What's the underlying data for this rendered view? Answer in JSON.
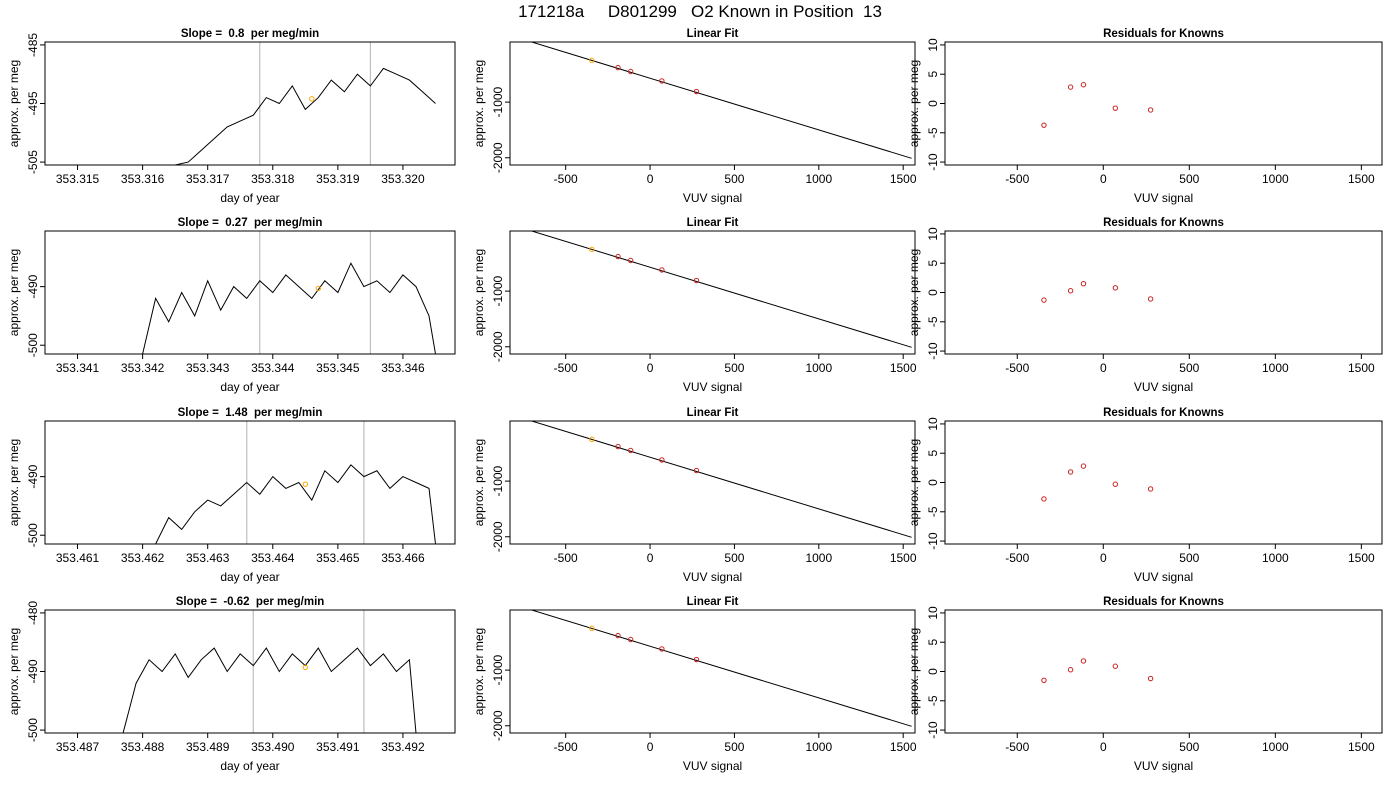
{
  "figure_title": "171218a     D801299   O2 Known in Position  13",
  "chart_data": [
    {
      "type": "line",
      "title": "Slope =  0.8  per meg/min",
      "xlabel": "day of year",
      "ylabel": "approx. per meg",
      "xlim": [
        353.3145,
        353.3208
      ],
      "ylim": [
        -505.5,
        -484.5
      ],
      "x_ticks": [
        "353.315",
        "353.316",
        "353.317",
        "353.318",
        "353.319",
        "353.320"
      ],
      "y_ticks": [
        "-485",
        "-495",
        "-505"
      ],
      "vlines": [
        353.3178,
        353.3195
      ],
      "marker": {
        "x": 353.3186,
        "y": -494.2,
        "color": "#ffa500"
      },
      "trace_color": "#000000",
      "vline_color": "#bebebe",
      "series": [
        {
          "x": [
            353.3165,
            353.3167,
            353.3169,
            353.3171,
            353.3173,
            353.3175,
            353.3177,
            353.3179,
            353.3181,
            353.3183,
            353.3185,
            353.3187,
            353.3189,
            353.3191,
            353.3193,
            353.3195,
            353.3197,
            353.3199,
            353.3201,
            353.3203,
            353.3205
          ],
          "y": [
            -505.5,
            -505,
            -503,
            -501,
            -499,
            -498,
            -497,
            -494,
            -495,
            -492,
            -496,
            -494,
            -491,
            -493,
            -490,
            -492,
            -489,
            -490,
            -491,
            -493,
            -495
          ]
        }
      ]
    },
    {
      "type": "line",
      "title": "Linear Fit",
      "xlabel": "VUV signal",
      "ylabel": "approx. per meg",
      "xlim": [
        -830,
        1570
      ],
      "ylim": [
        -2130,
        80
      ],
      "x_ticks": [
        -500,
        0,
        500,
        1000,
        1500
      ],
      "y_ticks": [
        -1000,
        -2000
      ],
      "line": {
        "x": [
          -820,
          1550
        ],
        "y": [
          190,
          -2010
        ]
      },
      "points": [
        {
          "x": -345,
          "y": -250,
          "color": "#ffa500"
        },
        {
          "x": -190,
          "y": -380,
          "color": "#cc2222"
        },
        {
          "x": -115,
          "y": -450,
          "color": "#cc2222"
        },
        {
          "x": 70,
          "y": -620,
          "color": "#cc2222"
        },
        {
          "x": 275,
          "y": -810,
          "color": "#cc2222"
        }
      ]
    },
    {
      "type": "scatter",
      "title": "Residuals for Knowns",
      "xlabel": "VUV signal",
      "ylabel": "approx. per meg",
      "xlim": [
        -920,
        1620
      ],
      "ylim": [
        -10.5,
        10.5
      ],
      "x_ticks": [
        -500,
        0,
        500,
        1000,
        1500
      ],
      "y_ticks": [
        10,
        5,
        0,
        -5,
        -10
      ],
      "points": [
        {
          "x": -345,
          "y": -3.7,
          "color": "#cc2222"
        },
        {
          "x": -190,
          "y": 2.8,
          "color": "#cc2222"
        },
        {
          "x": -115,
          "y": 3.2,
          "color": "#cc2222"
        },
        {
          "x": 70,
          "y": -0.8,
          "color": "#cc2222"
        },
        {
          "x": 275,
          "y": -1.1,
          "color": "#cc2222"
        }
      ]
    },
    {
      "type": "line",
      "title": "Slope =  0.27  per meg/min",
      "xlabel": "day of year",
      "ylabel": "approx. per meg",
      "xlim": [
        353.3405,
        353.3468
      ],
      "ylim": [
        -501.5,
        -480.5
      ],
      "x_ticks": [
        "353.341",
        "353.342",
        "353.343",
        "353.344",
        "353.345",
        "353.346"
      ],
      "y_ticks": [
        "-490",
        "-500"
      ],
      "vlines": [
        353.3438,
        353.3455
      ],
      "marker": {
        "x": 353.3447,
        "y": -490.3,
        "color": "#ffa500"
      },
      "trace_color": "#000000",
      "vline_color": "#bebebe",
      "series": [
        {
          "x": [
            353.342,
            353.3422,
            353.3424,
            353.3426,
            353.3428,
            353.343,
            353.3432,
            353.3434,
            353.3436,
            353.3438,
            353.344,
            353.3442,
            353.3444,
            353.3446,
            353.3448,
            353.345,
            353.3452,
            353.3454,
            353.3456,
            353.3458,
            353.346,
            353.3462,
            353.3464,
            353.3465
          ],
          "y": [
            -501.5,
            -492,
            -496,
            -491,
            -495,
            -489,
            -494,
            -490,
            -492,
            -489,
            -491,
            -488,
            -490,
            -492,
            -489,
            -491,
            -486,
            -490,
            -489,
            -491,
            -488,
            -490,
            -495,
            -501.5
          ]
        }
      ]
    },
    {
      "type": "line",
      "title": "Linear Fit",
      "xlabel": "VUV signal",
      "ylabel": "approx. per meg",
      "xlim": [
        -830,
        1570
      ],
      "ylim": [
        -2130,
        80
      ],
      "x_ticks": [
        -500,
        0,
        500,
        1000,
        1500
      ],
      "y_ticks": [
        -1000,
        -2000
      ],
      "line": {
        "x": [
          -820,
          1550
        ],
        "y": [
          190,
          -2010
        ]
      },
      "points": [
        {
          "x": -345,
          "y": -250,
          "color": "#ffa500"
        },
        {
          "x": -190,
          "y": -380,
          "color": "#cc2222"
        },
        {
          "x": -115,
          "y": -450,
          "color": "#cc2222"
        },
        {
          "x": 70,
          "y": -620,
          "color": "#cc2222"
        },
        {
          "x": 275,
          "y": -810,
          "color": "#cc2222"
        }
      ]
    },
    {
      "type": "scatter",
      "title": "Residuals for Knowns",
      "xlabel": "VUV signal",
      "ylabel": "approx. per meg",
      "xlim": [
        -920,
        1620
      ],
      "ylim": [
        -10.5,
        10.5
      ],
      "x_ticks": [
        -500,
        0,
        500,
        1000,
        1500
      ],
      "y_ticks": [
        10,
        5,
        0,
        -5,
        -10
      ],
      "points": [
        {
          "x": -345,
          "y": -1.3,
          "color": "#cc2222"
        },
        {
          "x": -190,
          "y": 0.3,
          "color": "#cc2222"
        },
        {
          "x": -115,
          "y": 1.5,
          "color": "#cc2222"
        },
        {
          "x": 70,
          "y": 0.8,
          "color": "#cc2222"
        },
        {
          "x": 275,
          "y": -1.1,
          "color": "#cc2222"
        }
      ]
    },
    {
      "type": "line",
      "title": "Slope =  1.48  per meg/min",
      "xlabel": "day of year",
      "ylabel": "approx. per meg",
      "xlim": [
        353.4605,
        353.4668
      ],
      "ylim": [
        -501.5,
        -480.5
      ],
      "x_ticks": [
        "353.461",
        "353.462",
        "353.463",
        "353.464",
        "353.465",
        "353.466"
      ],
      "y_ticks": [
        "-490",
        "-500"
      ],
      "vlines": [
        353.4636,
        353.4654
      ],
      "marker": {
        "x": 353.4645,
        "y": -491.3,
        "color": "#ffa500"
      },
      "trace_color": "#000000",
      "vline_color": "#bebebe",
      "series": [
        {
          "x": [
            353.4622,
            353.4624,
            353.4626,
            353.4628,
            353.463,
            353.4632,
            353.4634,
            353.4636,
            353.4638,
            353.464,
            353.4642,
            353.4644,
            353.4646,
            353.4648,
            353.465,
            353.4652,
            353.4654,
            353.4656,
            353.4658,
            353.466,
            353.4662,
            353.4664,
            353.4665
          ],
          "y": [
            -501.5,
            -497,
            -499,
            -496,
            -494,
            -495,
            -493,
            -491,
            -493,
            -490,
            -492,
            -491,
            -494,
            -489,
            -491,
            -488,
            -490,
            -489,
            -492,
            -490,
            -491,
            -492,
            -501.5
          ]
        }
      ]
    },
    {
      "type": "line",
      "title": "Linear Fit",
      "xlabel": "VUV signal",
      "ylabel": "approx. per meg",
      "xlim": [
        -830,
        1570
      ],
      "ylim": [
        -2130,
        80
      ],
      "x_ticks": [
        -500,
        0,
        500,
        1000,
        1500
      ],
      "y_ticks": [
        -1000,
        -2000
      ],
      "line": {
        "x": [
          -820,
          1550
        ],
        "y": [
          190,
          -2010
        ]
      },
      "points": [
        {
          "x": -345,
          "y": -250,
          "color": "#ffa500"
        },
        {
          "x": -190,
          "y": -380,
          "color": "#cc2222"
        },
        {
          "x": -115,
          "y": -450,
          "color": "#cc2222"
        },
        {
          "x": 70,
          "y": -620,
          "color": "#cc2222"
        },
        {
          "x": 275,
          "y": -810,
          "color": "#cc2222"
        }
      ]
    },
    {
      "type": "scatter",
      "title": "Residuals for Knowns",
      "xlabel": "VUV signal",
      "ylabel": "approx. per meg",
      "xlim": [
        -920,
        1620
      ],
      "ylim": [
        -10.5,
        10.5
      ],
      "x_ticks": [
        -500,
        0,
        500,
        1000,
        1500
      ],
      "y_ticks": [
        10,
        5,
        0,
        -5,
        -10
      ],
      "points": [
        {
          "x": -345,
          "y": -2.8,
          "color": "#cc2222"
        },
        {
          "x": -190,
          "y": 1.8,
          "color": "#cc2222"
        },
        {
          "x": -115,
          "y": 2.8,
          "color": "#cc2222"
        },
        {
          "x": 70,
          "y": -0.3,
          "color": "#cc2222"
        },
        {
          "x": 275,
          "y": -1.1,
          "color": "#cc2222"
        }
      ]
    },
    {
      "type": "line",
      "title": "Slope =  -0.62  per meg/min",
      "xlabel": "day of year",
      "ylabel": "approx. per meg",
      "xlim": [
        353.4865,
        353.4928
      ],
      "ylim": [
        -500.5,
        -479.5
      ],
      "x_ticks": [
        "353.487",
        "353.488",
        "353.489",
        "353.490",
        "353.491",
        "353.492"
      ],
      "y_ticks": [
        "-480",
        "-490",
        "-500"
      ],
      "vlines": [
        353.4897,
        353.4914
      ],
      "marker": {
        "x": 353.4905,
        "y": -489.3,
        "color": "#ffa500"
      },
      "trace_color": "#000000",
      "vline_color": "#bebebe",
      "series": [
        {
          "x": [
            353.4877,
            353.4879,
            353.4881,
            353.4883,
            353.4885,
            353.4887,
            353.4889,
            353.4891,
            353.4893,
            353.4895,
            353.4897,
            353.4899,
            353.4901,
            353.4903,
            353.4905,
            353.4907,
            353.4909,
            353.4911,
            353.4913,
            353.4915,
            353.4917,
            353.4919,
            353.4921,
            353.4922
          ],
          "y": [
            -500.5,
            -492,
            -488,
            -490,
            -487,
            -491,
            -488,
            -486,
            -490,
            -487,
            -489,
            -486,
            -490,
            -487,
            -489,
            -486,
            -490,
            -488,
            -486,
            -489,
            -487,
            -490,
            -488,
            -500.5
          ]
        }
      ]
    },
    {
      "type": "line",
      "title": "Linear Fit",
      "xlabel": "VUV signal",
      "ylabel": "approx. per meg",
      "xlim": [
        -830,
        1570
      ],
      "ylim": [
        -2130,
        80
      ],
      "x_ticks": [
        -500,
        0,
        500,
        1000,
        1500
      ],
      "y_ticks": [
        -1000,
        -2000
      ],
      "line": {
        "x": [
          -820,
          1550
        ],
        "y": [
          190,
          -2010
        ]
      },
      "points": [
        {
          "x": -345,
          "y": -250,
          "color": "#ffa500"
        },
        {
          "x": -190,
          "y": -380,
          "color": "#cc2222"
        },
        {
          "x": -115,
          "y": -450,
          "color": "#cc2222"
        },
        {
          "x": 70,
          "y": -620,
          "color": "#cc2222"
        },
        {
          "x": 275,
          "y": -810,
          "color": "#cc2222"
        }
      ]
    },
    {
      "type": "scatter",
      "title": "Residuals for Knowns",
      "xlabel": "VUV signal",
      "ylabel": "approx. per meg",
      "xlim": [
        -920,
        1620
      ],
      "ylim": [
        -10.5,
        10.5
      ],
      "x_ticks": [
        -500,
        0,
        500,
        1000,
        1500
      ],
      "y_ticks": [
        10,
        5,
        0,
        -5,
        -10
      ],
      "points": [
        {
          "x": -345,
          "y": -1.5,
          "color": "#cc2222"
        },
        {
          "x": -190,
          "y": 0.3,
          "color": "#cc2222"
        },
        {
          "x": -115,
          "y": 1.8,
          "color": "#cc2222"
        },
        {
          "x": 70,
          "y": 0.9,
          "color": "#cc2222"
        },
        {
          "x": 275,
          "y": -1.2,
          "color": "#cc2222"
        }
      ]
    }
  ]
}
